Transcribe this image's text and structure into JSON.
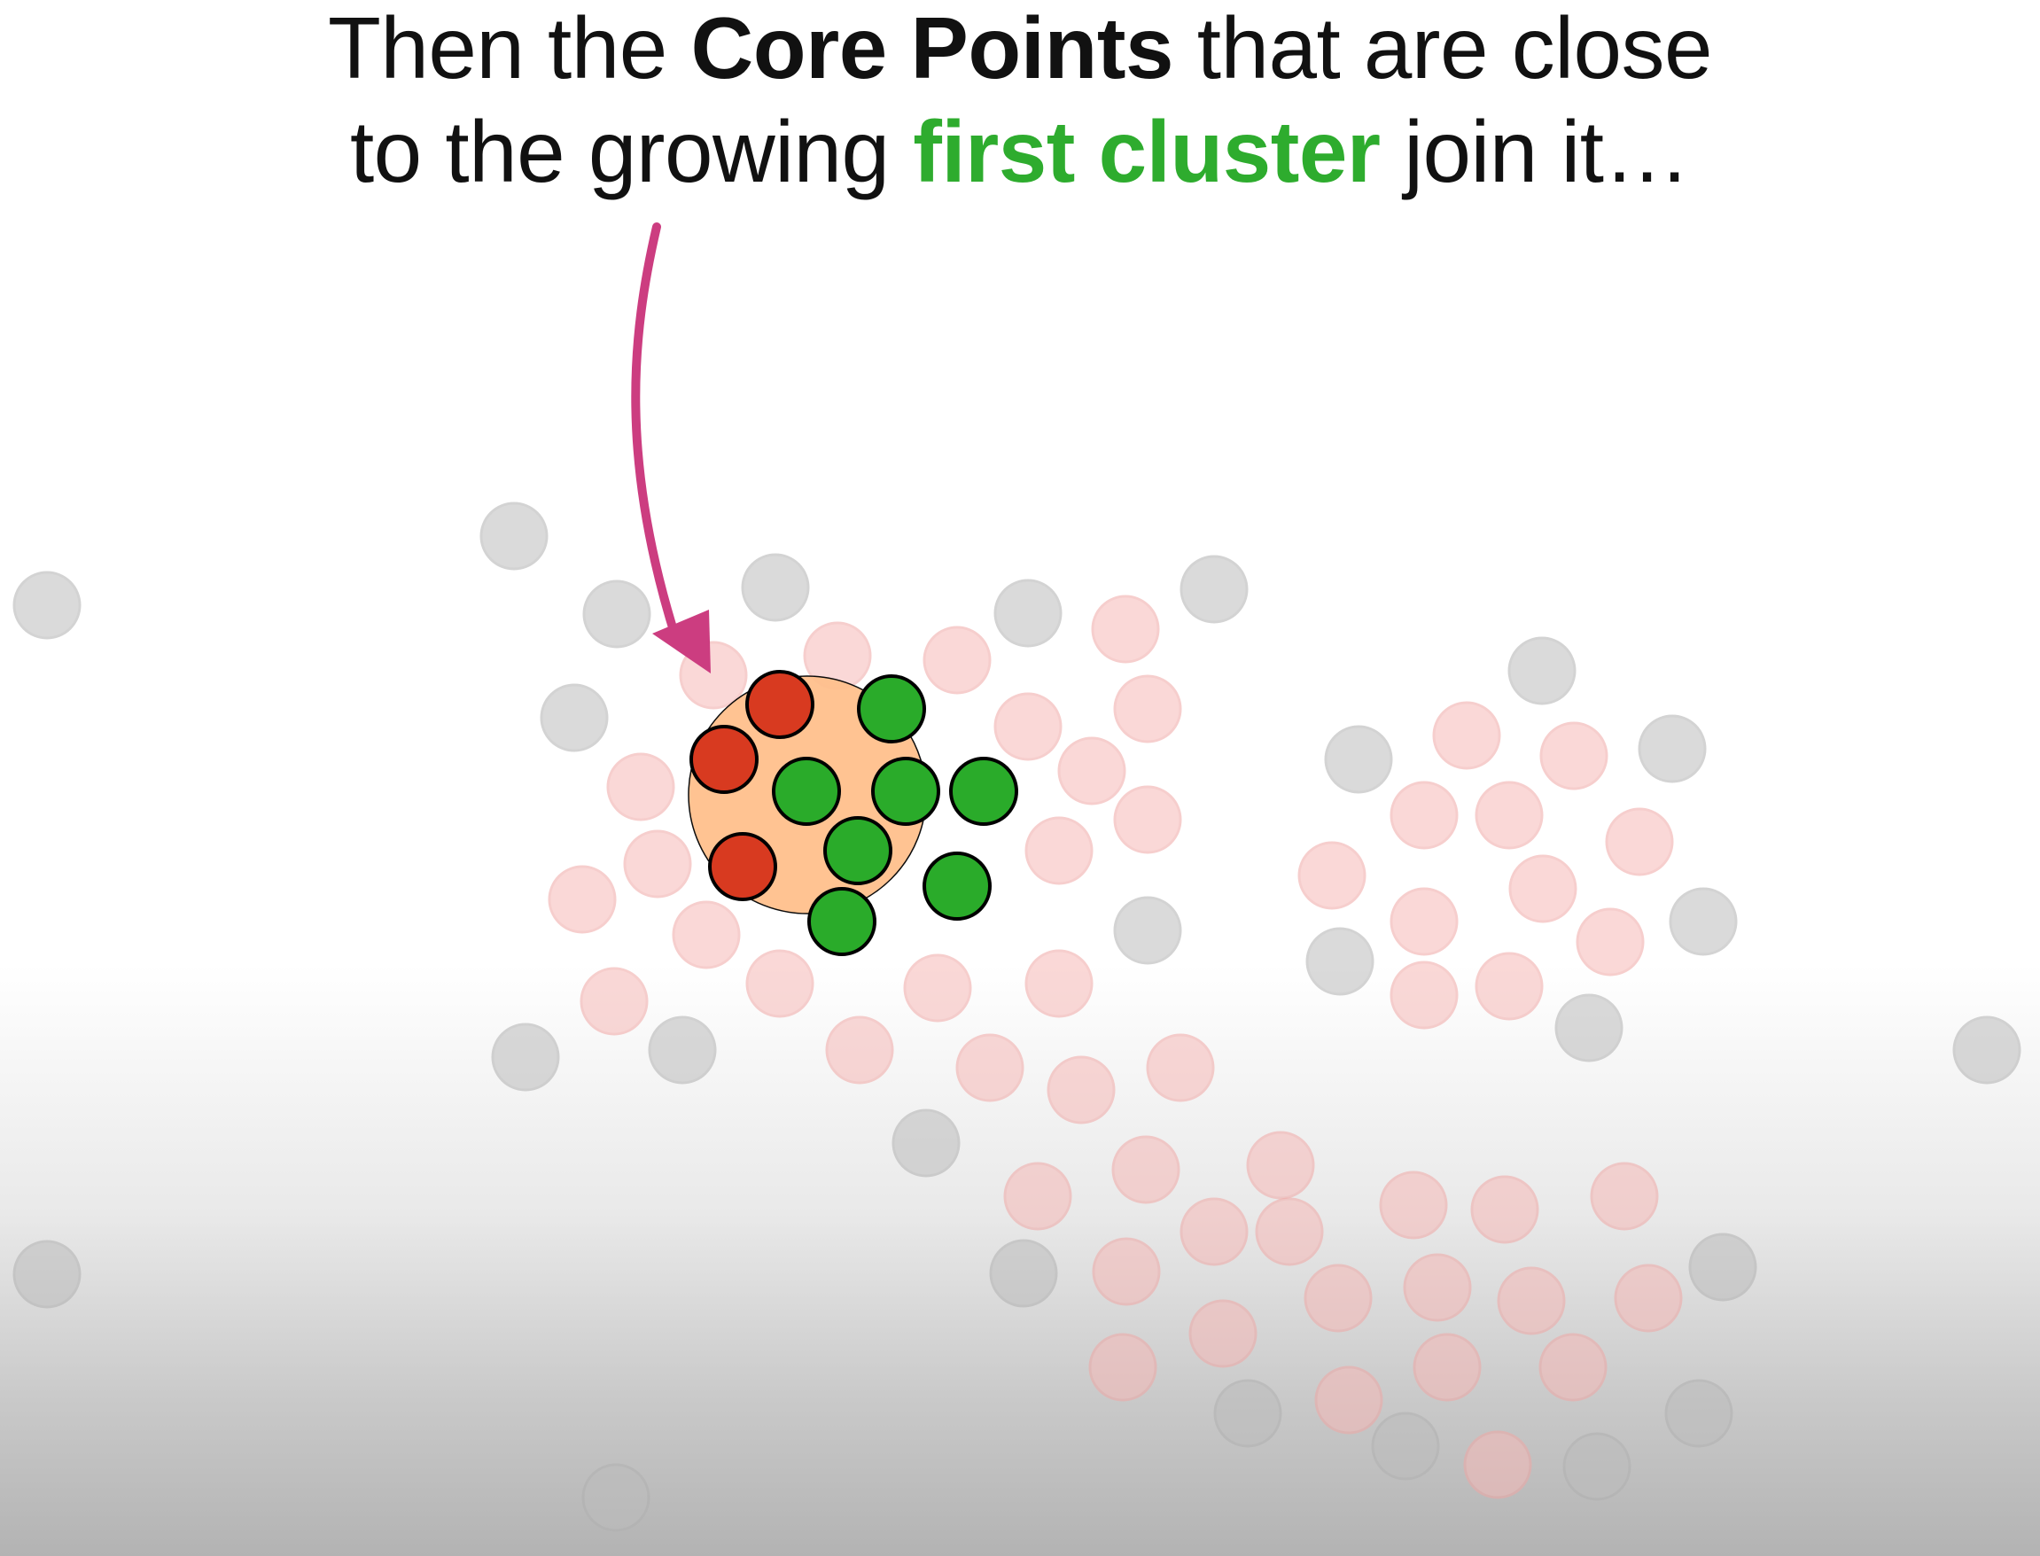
{
  "caption": {
    "part1": "Then the ",
    "part2": "Core Points",
    "part3": " that are close to the growing ",
    "part4": "first cluster",
    "part5": " join it…"
  },
  "colors": {
    "core_faded": "#f6b9b7",
    "outlier": "#bcbcbc",
    "cluster": "#2aab2a",
    "core_points_in_reach": "#d83a20",
    "reach_circle": "#ffc08d",
    "arrow": "#cc3d80",
    "highlight_text": "#2eac2e"
  },
  "icons": [
    "curved-arrow-icon"
  ]
}
